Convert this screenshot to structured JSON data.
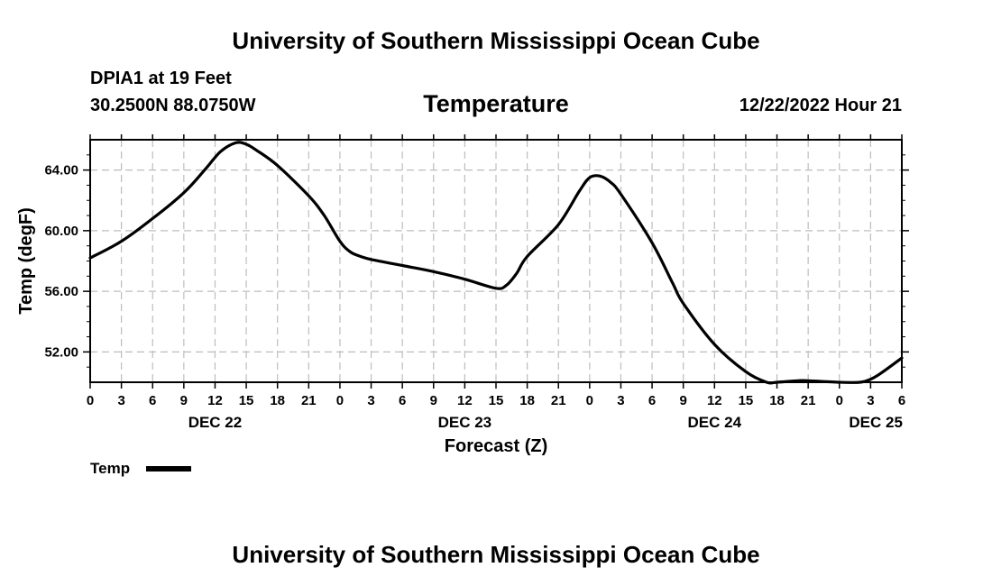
{
  "header": {
    "title": "University of Southern Mississippi Ocean Cube",
    "station": "DPIA1 at 19 Feet",
    "coordinates": "30.2500N  88.0750W",
    "variable": "Temperature",
    "datetime": "12/22/2022 Hour 21"
  },
  "footer": {
    "title": "University of Southern Mississippi Ocean Cube"
  },
  "chart_data": {
    "type": "line",
    "title": "Temperature",
    "xlabel": "Forecast (Z)",
    "ylabel": "Temp (degF)",
    "xlim": [
      0,
      78
    ],
    "ylim": [
      50,
      66
    ],
    "grid": true,
    "x_tick_values": [
      0,
      3,
      6,
      9,
      12,
      15,
      18,
      21,
      24,
      27,
      30,
      33,
      36,
      39,
      42,
      45,
      48,
      51,
      54,
      57,
      60,
      63,
      66,
      69,
      72,
      75,
      78
    ],
    "x_tick_labels": [
      "0",
      "3",
      "6",
      "9",
      "12",
      "15",
      "18",
      "21",
      "0",
      "3",
      "6",
      "9",
      "12",
      "15",
      "18",
      "21",
      "0",
      "3",
      "6",
      "9",
      "12",
      "15",
      "18",
      "21",
      "0",
      "3",
      "6"
    ],
    "date_labels": [
      {
        "x": 12,
        "label": "DEC 22"
      },
      {
        "x": 36,
        "label": "DEC 23"
      },
      {
        "x": 60,
        "label": "DEC 24"
      },
      {
        "x": 75.5,
        "label": "DEC 25"
      }
    ],
    "y_ticks": [
      {
        "value": 52,
        "label": "52.00"
      },
      {
        "value": 56,
        "label": "56.00"
      },
      {
        "value": 60,
        "label": "60.00"
      },
      {
        "value": 64,
        "label": "64.00"
      }
    ],
    "legend": {
      "label": "Temp",
      "placement": "bottom-left"
    },
    "series": [
      {
        "name": "Temp",
        "x": [
          0,
          3,
          6,
          9,
          11,
          12.5,
          14,
          15,
          16,
          18,
          21,
          22.5,
          24,
          25,
          26,
          27,
          30,
          33,
          36,
          39,
          40,
          41,
          42,
          45,
          47,
          48,
          49,
          50,
          51,
          54,
          56,
          57,
          60,
          63,
          65,
          66,
          68,
          69,
          72,
          74,
          75,
          76,
          78
        ],
        "values": [
          58.2,
          59.3,
          60.8,
          62.5,
          64.0,
          65.2,
          65.8,
          65.7,
          65.3,
          64.3,
          62.3,
          61.0,
          59.3,
          58.6,
          58.3,
          58.1,
          57.7,
          57.3,
          56.8,
          56.2,
          56.4,
          57.2,
          58.3,
          60.4,
          62.6,
          63.5,
          63.6,
          63.2,
          62.4,
          59.2,
          56.5,
          55.2,
          52.5,
          50.7,
          50.0,
          50.0,
          50.1,
          50.1,
          50.0,
          50.0,
          50.2,
          50.6,
          51.6
        ]
      }
    ]
  }
}
